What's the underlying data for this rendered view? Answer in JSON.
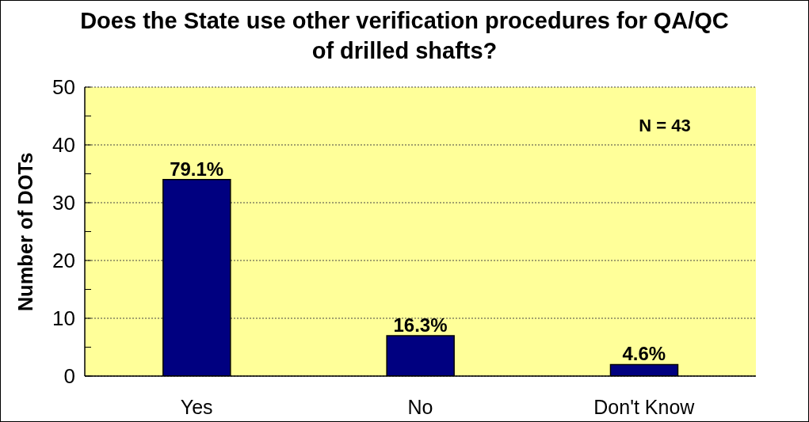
{
  "chart_data": {
    "type": "bar",
    "title": "Does the State use other verification procedures for QA/QC of drilled shafts?",
    "ylabel": "Number of DOTs",
    "annotations": [
      "N = 43",
      {
        "text": "79.1%",
        "x": "Yes",
        "y": 34
      },
      {
        "text": "16.3%",
        "x": "No",
        "y": 7
      },
      {
        "text": "4.6%",
        "x": "Don't Know",
        "y": 2
      }
    ],
    "categories": [
      "Yes",
      "No",
      "Don't Know"
    ],
    "values": [
      34,
      7,
      2
    ],
    "color": "#000080",
    "ylim": [
      0,
      50
    ],
    "yticks": [
      0,
      {
        "value": 5,
        "label": null
      },
      10,
      {
        "value": 15,
        "label": null
      },
      20,
      {
        "value": 25,
        "label": null
      },
      30,
      {
        "value": 35,
        "label": null
      },
      40,
      {
        "value": 45,
        "label": null
      },
      50
    ],
    "grid": "y"
  }
}
